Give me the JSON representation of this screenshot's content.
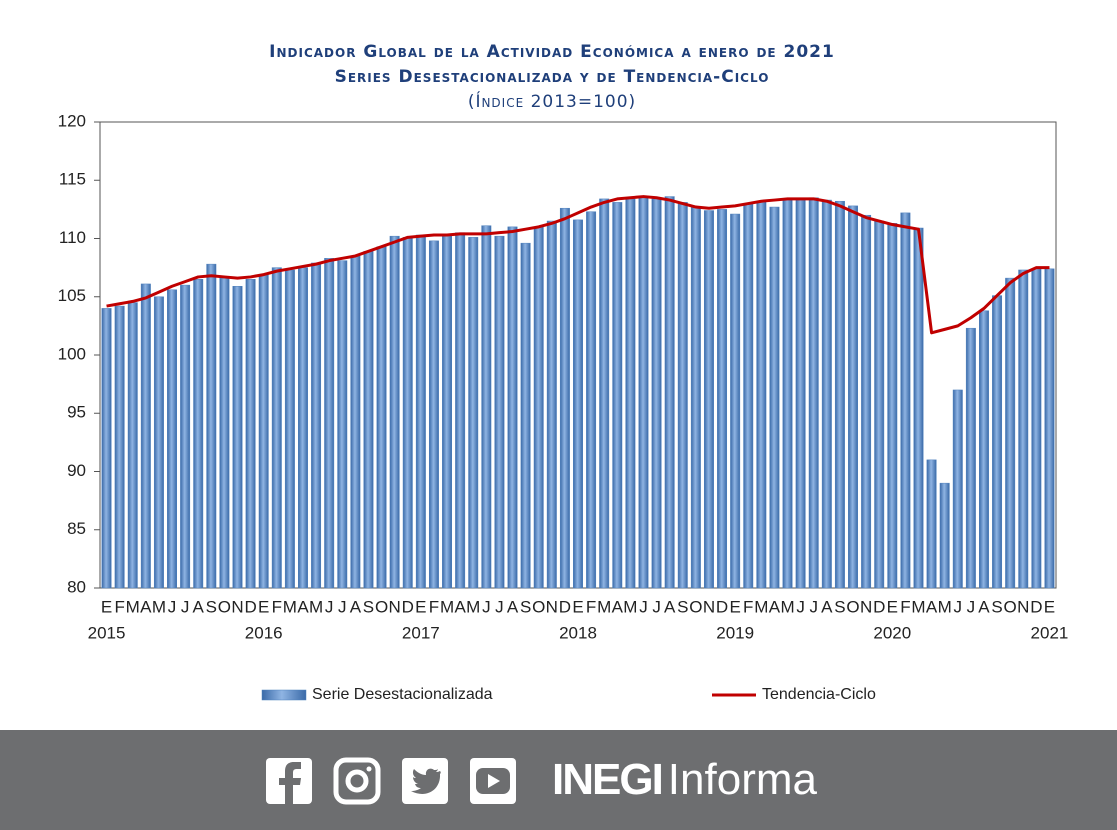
{
  "chart_data": {
    "type": "bar-line",
    "title": [
      "Indicador Global de la Actividad Económica a enero de 2021",
      "Series Desestacionalizada y de Tendencia-Ciclo",
      "(Índice 2013=100)"
    ],
    "categories": [
      "E",
      "F",
      "M",
      "A",
      "M",
      "J",
      "J",
      "A",
      "S",
      "O",
      "N",
      "D",
      "E",
      "F",
      "M",
      "A",
      "M",
      "J",
      "J",
      "A",
      "S",
      "O",
      "N",
      "D",
      "E",
      "F",
      "M",
      "A",
      "M",
      "J",
      "J",
      "A",
      "S",
      "O",
      "N",
      "D",
      "E",
      "F",
      "M",
      "A",
      "M",
      "J",
      "J",
      "A",
      "S",
      "O",
      "N",
      "D",
      "E",
      "F",
      "M",
      "A",
      "M",
      "J",
      "J",
      "A",
      "S",
      "O",
      "N",
      "D",
      "E",
      "F",
      "M",
      "A",
      "M",
      "J",
      "J",
      "A",
      "S",
      "O",
      "N",
      "D",
      "E"
    ],
    "category_groups": [
      "2015",
      "2016",
      "2017",
      "2018",
      "2019",
      "2020",
      "2021"
    ],
    "series": [
      {
        "name": "Serie Desestacionalizada",
        "kind": "bar",
        "color": "#4f81bd",
        "values": [
          104.0,
          104.2,
          104.5,
          106.1,
          105.0,
          105.6,
          106.0,
          106.5,
          107.8,
          106.6,
          105.9,
          106.5,
          106.9,
          107.5,
          107.3,
          107.5,
          107.9,
          108.3,
          108.1,
          108.5,
          108.9,
          109.3,
          110.2,
          110.1,
          110.3,
          109.8,
          110.4,
          110.5,
          110.1,
          111.1,
          110.2,
          111.0,
          109.6,
          111.0,
          111.5,
          112.6,
          111.6,
          112.3,
          113.4,
          113.1,
          113.4,
          113.5,
          113.4,
          113.6,
          113.1,
          112.7,
          112.4,
          112.5,
          112.1,
          113.0,
          113.2,
          112.7,
          113.4,
          113.3,
          113.5,
          113.3,
          113.2,
          112.8,
          112.0,
          111.5,
          111.3,
          112.2,
          110.9,
          91.0,
          89.0,
          97.0,
          102.3,
          103.8,
          105.1,
          106.6,
          107.3,
          107.4,
          107.4
        ]
      },
      {
        "name": "Tendencia-Ciclo",
        "kind": "line",
        "color": "#c00000",
        "values": [
          104.2,
          104.4,
          104.6,
          104.9,
          105.4,
          105.9,
          106.3,
          106.7,
          106.8,
          106.7,
          106.6,
          106.7,
          106.9,
          107.2,
          107.4,
          107.6,
          107.8,
          108.1,
          108.3,
          108.5,
          108.9,
          109.3,
          109.7,
          110.1,
          110.2,
          110.3,
          110.3,
          110.4,
          110.4,
          110.4,
          110.5,
          110.6,
          110.8,
          111.0,
          111.3,
          111.7,
          112.2,
          112.7,
          113.1,
          113.4,
          113.5,
          113.6,
          113.5,
          113.3,
          113.0,
          112.7,
          112.6,
          112.7,
          112.8,
          113.0,
          113.2,
          113.3,
          113.4,
          113.4,
          113.4,
          113.2,
          112.8,
          112.3,
          111.8,
          111.5,
          111.2,
          111.0,
          110.8,
          101.9,
          102.2,
          102.5,
          103.2,
          104.0,
          105.1,
          106.2,
          107.0,
          107.5,
          107.5
        ]
      }
    ],
    "ylim": [
      80,
      120
    ],
    "yticks": [
      80,
      85,
      90,
      95,
      100,
      105,
      110,
      115,
      120
    ],
    "grid": false
  },
  "footer": {
    "brand": "INEGI",
    "product": "Informa"
  }
}
